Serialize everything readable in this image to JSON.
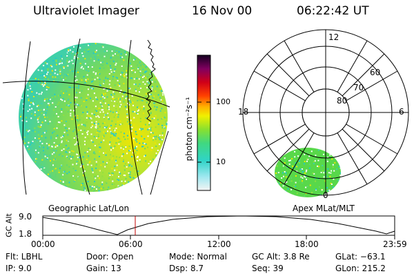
{
  "header": {
    "instrument": "Ultraviolet Imager",
    "date": "16 Nov 00",
    "time": "06:22:42 UT"
  },
  "colorbar": {
    "unit_label": "photon cm⁻²s⁻¹",
    "ticks": [
      "100",
      "10"
    ]
  },
  "left_panel": {
    "label": "Geographic Lat/Lon"
  },
  "right_panel": {
    "label": "Apex MLat/MLT",
    "mlt_labels": [
      "12",
      "18",
      "6",
      "0"
    ],
    "mlat_labels": [
      "60",
      "70",
      "80"
    ]
  },
  "altitude_strip": {
    "ylabel": "GC Alt",
    "ticks": [
      "9.0",
      "1.8"
    ],
    "time_labels": [
      "00:00",
      "06:00",
      "12:00",
      "18:00",
      "23:59"
    ],
    "current_time_marker": "06:22"
  },
  "info": {
    "flt": "Flt:  LBHL",
    "ip": "IP:  9.0",
    "door": "Door:  Open",
    "gain": "Gain:  13",
    "mode": "Mode:  Normal",
    "dsp": "Dsp:      8.7",
    "gc_alt": "GC Alt:  3.8 Re",
    "seq": "Seq:  39",
    "glat": "GLat:  −63.1",
    "glon": "GLon:  215.2"
  },
  "colors": {
    "colorbar_top": "#1a0030",
    "colorbar_mid": "#ffe000",
    "colorbar_low": "#30d0c0",
    "marker": "#c00000"
  }
}
